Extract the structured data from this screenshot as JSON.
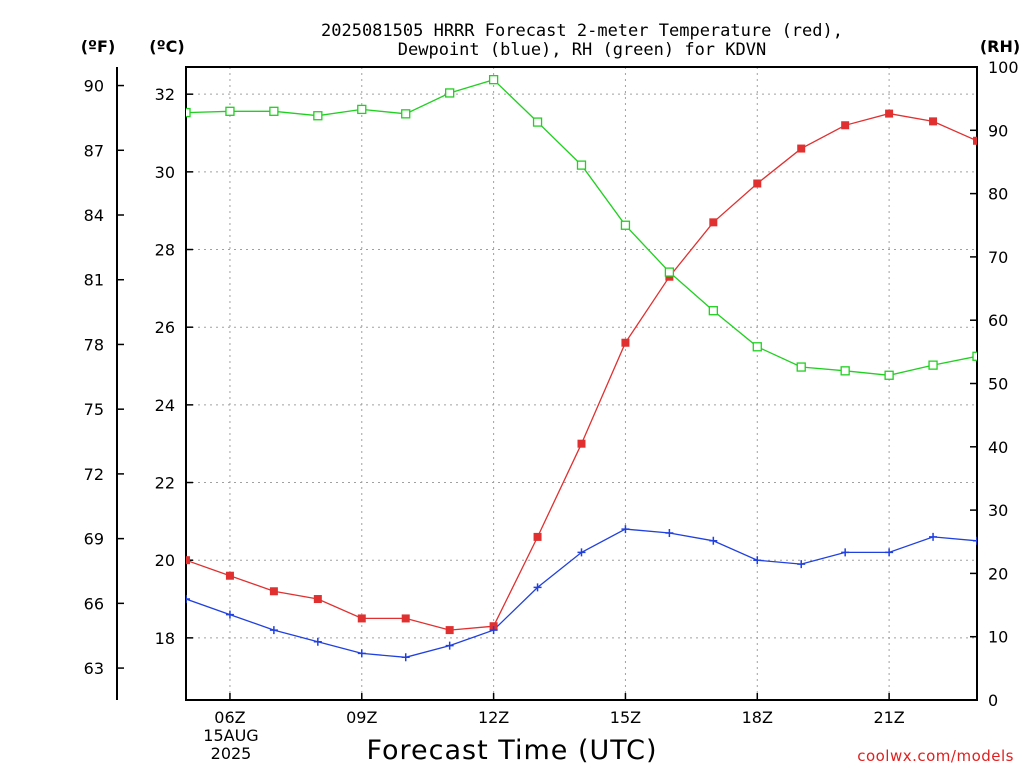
{
  "chart_data": {
    "type": "line",
    "title_line1": "2025081505 HRRR Forecast 2-meter Temperature (red),",
    "title_line2": "Dewpoint (blue), RH (green) for KDVN",
    "xlabel": "Forecast Time (UTC)",
    "credit": "coolwx.com/models",
    "unit_f": "(ºF)",
    "unit_c": "(ºC)",
    "unit_rh": "(RH)",
    "date_line1": "15AUG",
    "date_line2": "2025",
    "x_hours": [
      5,
      6,
      7,
      8,
      9,
      10,
      11,
      12,
      13,
      14,
      15,
      16,
      17,
      18,
      19,
      20,
      21,
      22,
      23
    ],
    "xlim": [
      5,
      23
    ],
    "x_ticks": [
      {
        "hour": 6,
        "label": "06Z"
      },
      {
        "hour": 9,
        "label": "09Z"
      },
      {
        "hour": 12,
        "label": "12Z"
      },
      {
        "hour": 15,
        "label": "15Z"
      },
      {
        "hour": 18,
        "label": "18Z"
      },
      {
        "hour": 21,
        "label": "21Z"
      }
    ],
    "ylim_c": [
      16.4,
      32.7
    ],
    "ylim_rh": [
      0,
      100
    ],
    "c_ticks": [
      18,
      20,
      22,
      24,
      26,
      28,
      30,
      32
    ],
    "f_ticks": [
      63,
      66,
      69,
      72,
      75,
      78,
      81,
      84,
      87,
      90
    ],
    "rh_ticks": [
      0,
      10,
      20,
      30,
      40,
      50,
      60,
      70,
      80,
      90,
      100
    ],
    "grid": true,
    "colors": {
      "temperature": "#e03030",
      "dewpoint": "#2040e0",
      "rh": "#20d020"
    },
    "series": [
      {
        "key": "temperature",
        "axis": "c",
        "marker": "filled-square",
        "values": [
          20.0,
          19.6,
          19.2,
          19.0,
          18.5,
          18.5,
          18.2,
          18.3,
          20.6,
          23.0,
          25.6,
          27.3,
          28.7,
          29.7,
          30.6,
          31.2,
          31.5,
          31.3,
          30.8
        ]
      },
      {
        "key": "dewpoint",
        "axis": "c",
        "marker": "plus",
        "values": [
          19.0,
          18.6,
          18.2,
          17.9,
          17.6,
          17.5,
          17.8,
          18.2,
          19.3,
          20.2,
          20.8,
          20.7,
          20.5,
          20.0,
          19.9,
          20.2,
          20.2,
          20.6,
          20.5
        ]
      },
      {
        "key": "rh",
        "axis": "rh",
        "marker": "open-square",
        "values": [
          92.8,
          93.0,
          93.0,
          92.3,
          93.3,
          92.6,
          95.9,
          98.0,
          91.3,
          84.5,
          75.0,
          67.6,
          61.5,
          55.8,
          52.6,
          52.0,
          51.3,
          52.9,
          54.3
        ]
      }
    ]
  }
}
